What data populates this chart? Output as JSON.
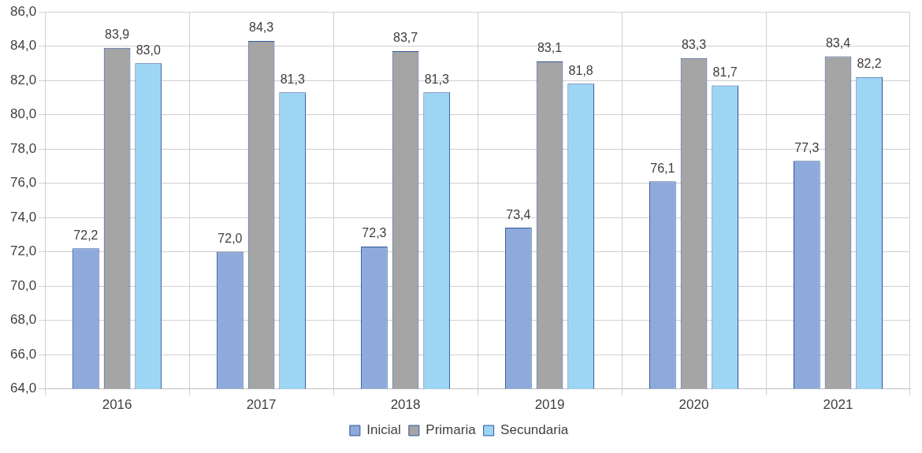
{
  "chart_data": {
    "type": "bar",
    "categories": [
      "2016",
      "2017",
      "2018",
      "2019",
      "2020",
      "2021"
    ],
    "series": [
      {
        "name": "Inicial",
        "color": "#8eaadb",
        "values": [
          72.2,
          72.0,
          72.3,
          73.4,
          76.1,
          77.3
        ],
        "value_labels": [
          "72,2",
          "72,0",
          "72,3",
          "73,4",
          "76,1",
          "77,3"
        ]
      },
      {
        "name": "Primaria",
        "color": "#a5a5a5",
        "values": [
          83.9,
          84.3,
          83.7,
          83.1,
          83.3,
          83.4
        ],
        "value_labels": [
          "83,9",
          "84,3",
          "83,7",
          "83,1",
          "83,3",
          "83,4"
        ]
      },
      {
        "name": "Secundaria",
        "color": "#9dd5f5",
        "values": [
          83.0,
          81.3,
          81.3,
          81.8,
          81.7,
          82.2
        ],
        "value_labels": [
          "83,0",
          "81,3",
          "81,3",
          "81,8",
          "81,7",
          "82,2"
        ]
      }
    ],
    "ylim": [
      64,
      86
    ],
    "yticks": [
      {
        "value": 64,
        "label": "64,0"
      },
      {
        "value": 66,
        "label": "66,0"
      },
      {
        "value": 68,
        "label": "68,0"
      },
      {
        "value": 70,
        "label": "70,0"
      },
      {
        "value": 72,
        "label": "72,0"
      },
      {
        "value": 74,
        "label": "74,0"
      },
      {
        "value": 76,
        "label": "76,0"
      },
      {
        "value": 78,
        "label": "78,0"
      },
      {
        "value": 80,
        "label": "80,0"
      },
      {
        "value": 82,
        "label": "82,0"
      },
      {
        "value": 84,
        "label": "84,0"
      },
      {
        "value": 86,
        "label": "86,0"
      }
    ],
    "grid": true,
    "legend": "bottom"
  }
}
